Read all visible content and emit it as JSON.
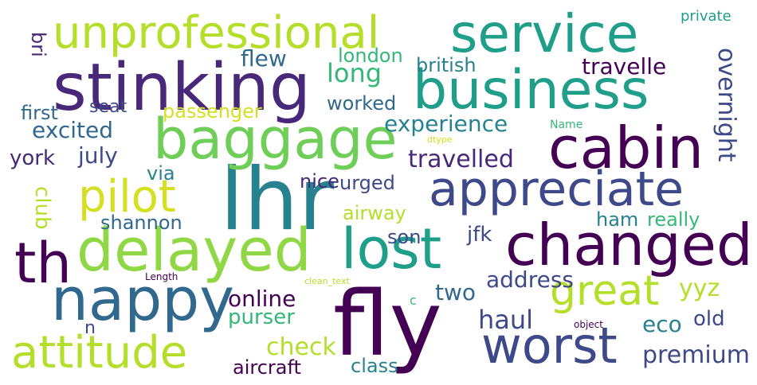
{
  "palette": {
    "c1": "#440154",
    "c2": "#482878",
    "c3": "#3e4989",
    "c4": "#31688e",
    "c5": "#26828e",
    "c6": "#1f9e89",
    "c7": "#35b779",
    "c8": "#6ece58",
    "c9": "#b5de2b",
    "c10": "#d4e021"
  },
  "words": [
    {
      "text": "lhr",
      "color": "#26828e"
    },
    {
      "text": "fly",
      "color": "#440154"
    },
    {
      "text": "service",
      "color": "#1f9e89"
    },
    {
      "text": "business",
      "color": "#1f9e89"
    },
    {
      "text": "stinking",
      "color": "#482878"
    },
    {
      "text": "unprofessional",
      "color": "#b5de2b"
    },
    {
      "text": "baggage",
      "color": "#6ece58"
    },
    {
      "text": "cabin",
      "color": "#440154"
    },
    {
      "text": "appreciate",
      "color": "#3e4989"
    },
    {
      "text": "changed",
      "color": "#440154"
    },
    {
      "text": "lost",
      "color": "#1f9e89"
    },
    {
      "text": "delayed",
      "color": "#8fd744"
    },
    {
      "text": "th",
      "color": "#440154"
    },
    {
      "text": "nappy",
      "color": "#31688e"
    },
    {
      "text": "worst",
      "color": "#3e4989"
    },
    {
      "text": "attitude",
      "color": "#b5de2b"
    },
    {
      "text": "pilot",
      "color": "#d4e021"
    },
    {
      "text": "great",
      "color": "#b5de2b"
    },
    {
      "text": "overnight",
      "color": "#3e4989"
    },
    {
      "text": "travelle",
      "color": "#440154"
    },
    {
      "text": "travelled",
      "color": "#482878"
    },
    {
      "text": "experience",
      "color": "#26828e"
    },
    {
      "text": "excited",
      "color": "#31688e"
    },
    {
      "text": "july",
      "color": "#3e4989"
    },
    {
      "text": "long",
      "color": "#35b779"
    },
    {
      "text": "flew",
      "color": "#31688e"
    },
    {
      "text": "london",
      "color": "#35b779"
    },
    {
      "text": "british",
      "color": "#26828e"
    },
    {
      "text": "worked",
      "color": "#31688e"
    },
    {
      "text": "passenger",
      "color": "#d4e021"
    },
    {
      "text": "seat",
      "color": "#3e4989"
    },
    {
      "text": "first",
      "color": "#31688e"
    },
    {
      "text": "bri",
      "color": "#482878"
    },
    {
      "text": "york",
      "color": "#482878"
    },
    {
      "text": "via",
      "color": "#26828e"
    },
    {
      "text": "club",
      "color": "#b5de2b"
    },
    {
      "text": "shannon",
      "color": "#31688e"
    },
    {
      "text": "nice",
      "color": "#482878"
    },
    {
      "text": "urged",
      "color": "#3e4989"
    },
    {
      "text": "airway",
      "color": "#b5de2b"
    },
    {
      "text": "son",
      "color": "#3e4989"
    },
    {
      "text": "jfk",
      "color": "#3e4989"
    },
    {
      "text": "ham",
      "color": "#26828e"
    },
    {
      "text": "really",
      "color": "#35b779"
    },
    {
      "text": "address",
      "color": "#3e4989"
    },
    {
      "text": "two",
      "color": "#31688e"
    },
    {
      "text": "yyz",
      "color": "#b5de2b"
    },
    {
      "text": "online",
      "color": "#440154"
    },
    {
      "text": "purser",
      "color": "#35b779"
    },
    {
      "text": "haul",
      "color": "#3e4989"
    },
    {
      "text": "eco",
      "color": "#26828e"
    },
    {
      "text": "old",
      "color": "#3e4989"
    },
    {
      "text": "check",
      "color": "#b5de2b"
    },
    {
      "text": "premium",
      "color": "#3e4989"
    },
    {
      "text": "aircraft",
      "color": "#440154"
    },
    {
      "text": "class",
      "color": "#26828e"
    },
    {
      "text": "private",
      "color": "#1f9e89"
    },
    {
      "text": "Name",
      "color": "#35b779"
    },
    {
      "text": "dtype",
      "color": "#d4e021"
    },
    {
      "text": "Length",
      "color": "#440154"
    },
    {
      "text": "clean_text",
      "color": "#b5de2b"
    },
    {
      "text": "object",
      "color": "#440154"
    },
    {
      "text": "n",
      "color": "#3e4989"
    },
    {
      "text": "c",
      "color": "#35b779"
    }
  ]
}
